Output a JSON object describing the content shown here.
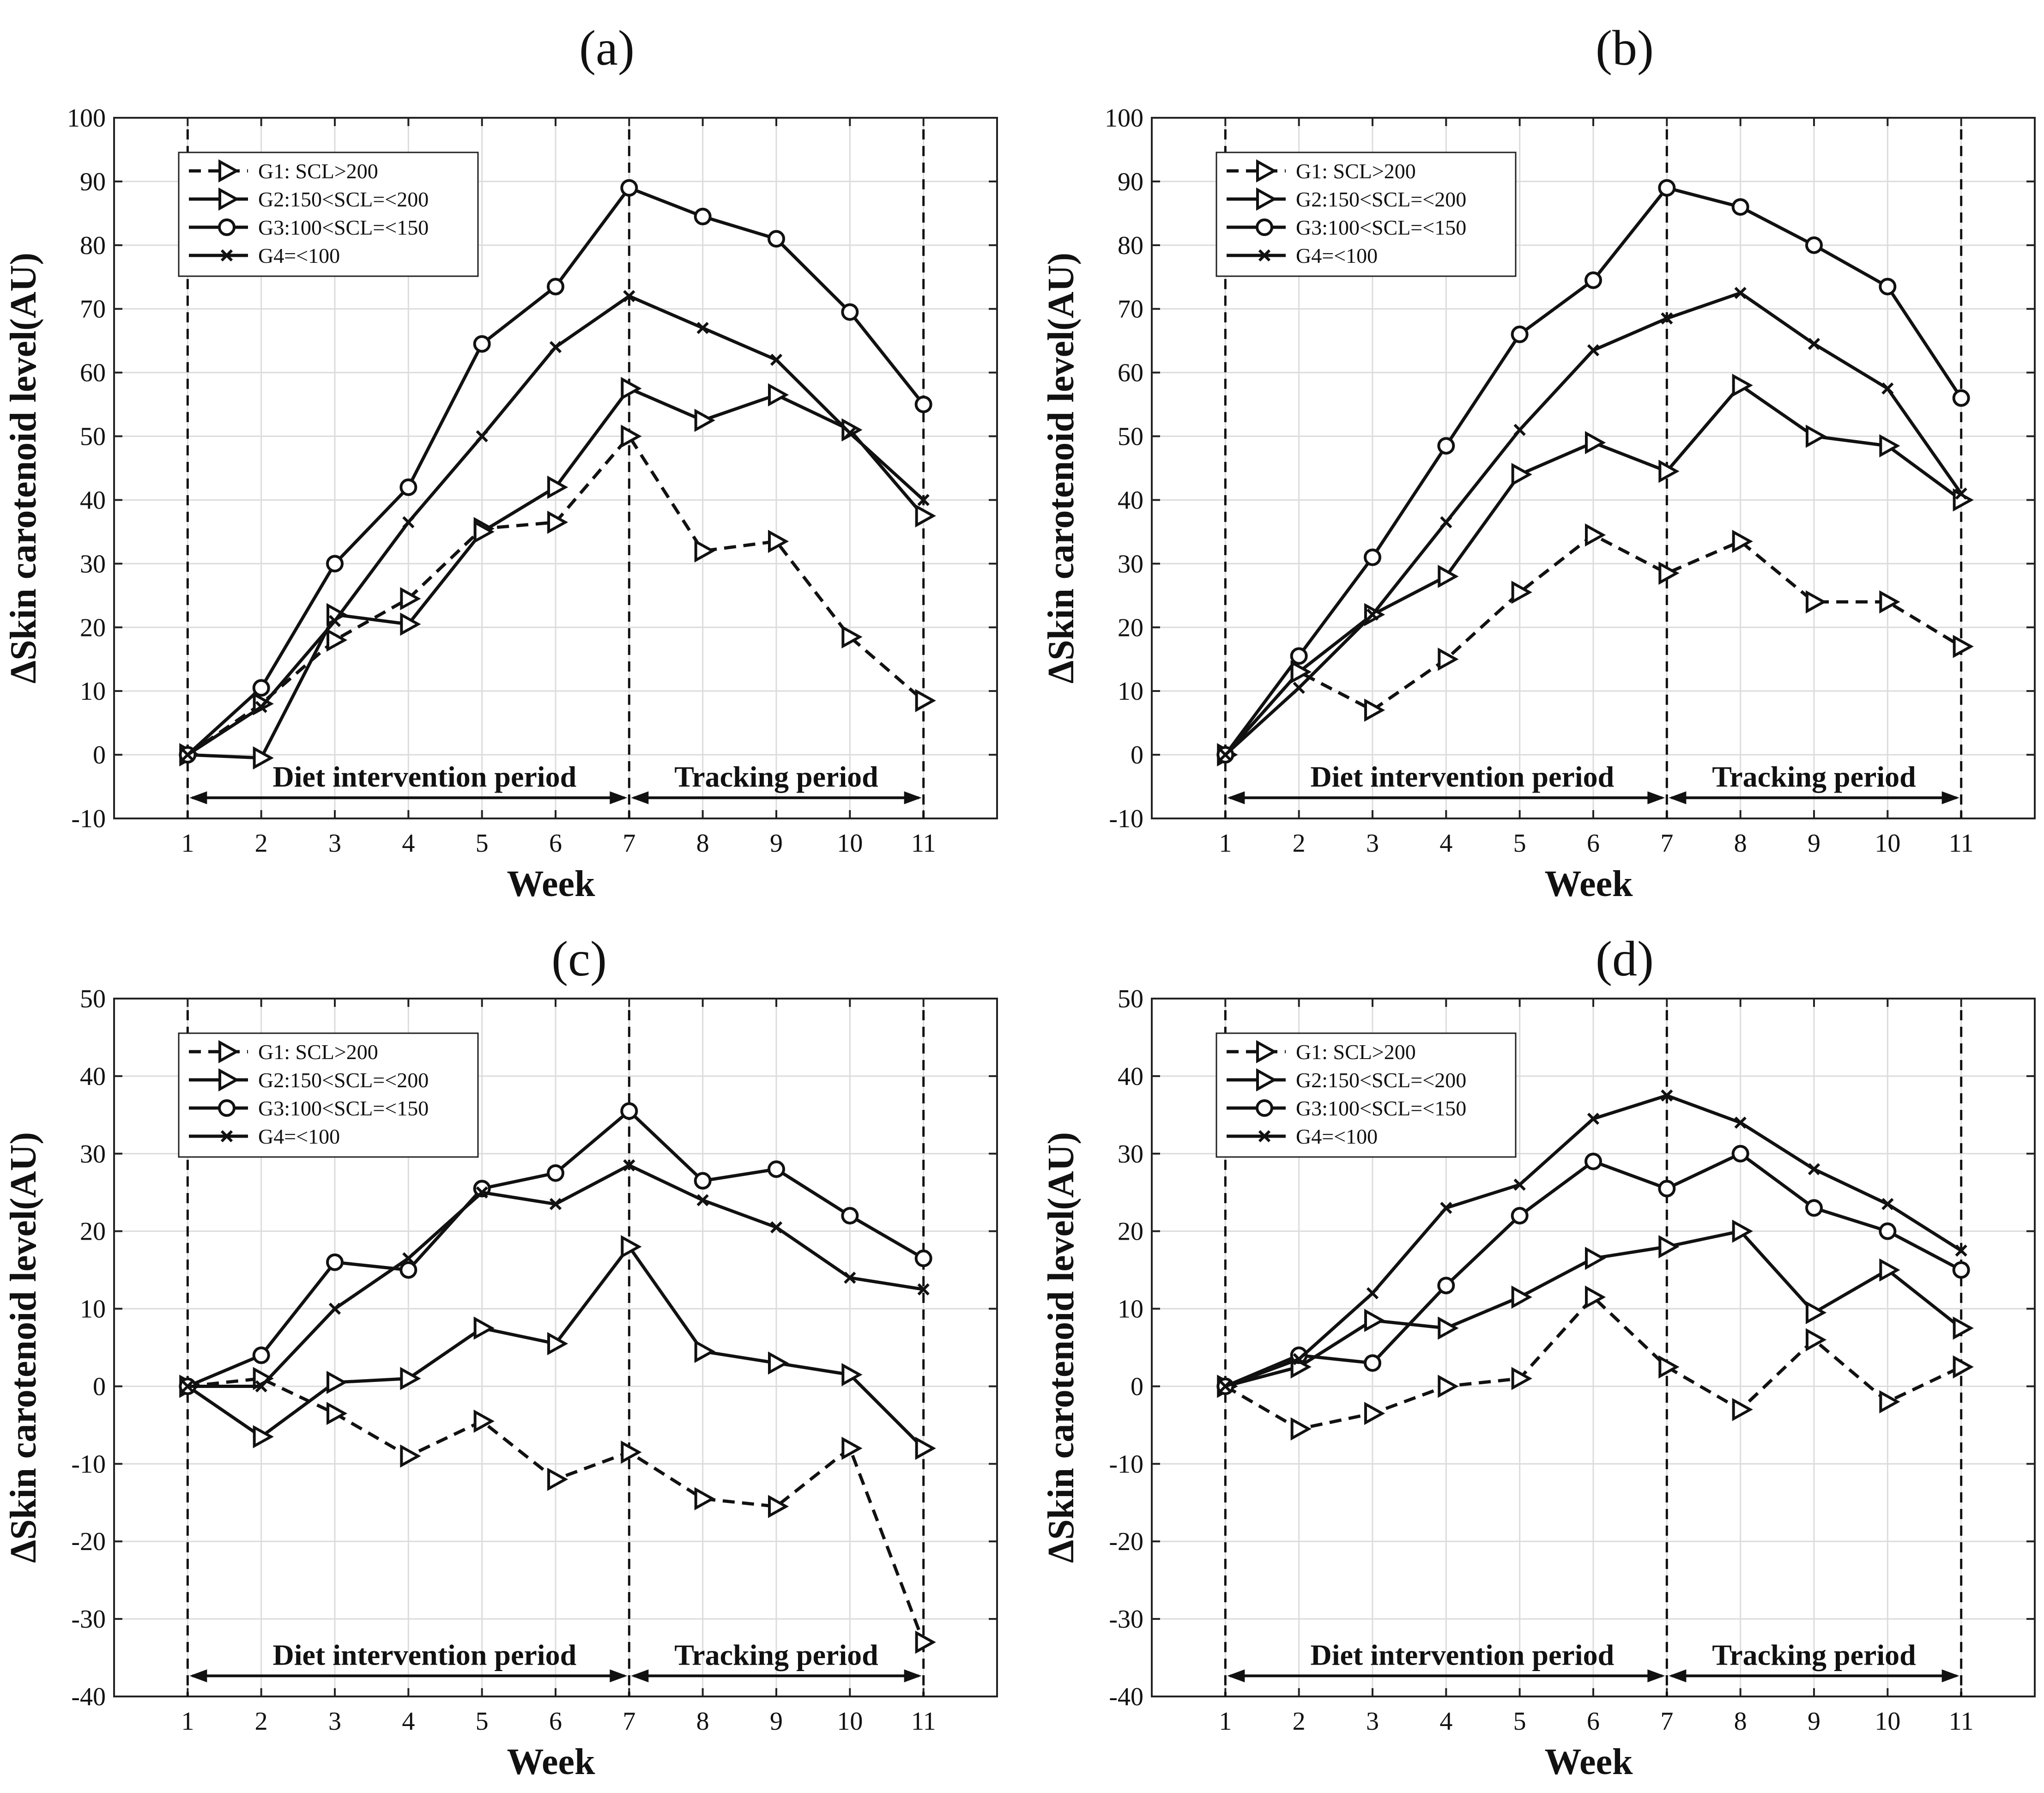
{
  "chart_data": [
    {
      "type": "line",
      "title": "(a)",
      "xlabel": "Week",
      "ylabel": "ΔSkin carotenoid level(AU)",
      "x": [
        1,
        2,
        3,
        4,
        5,
        6,
        7,
        8,
        9,
        10,
        11
      ],
      "xlim": [
        0,
        12
      ],
      "ylim": [
        -10,
        100
      ],
      "ytick_step": 10,
      "grid": true,
      "legend_position": "top-left",
      "period_labels": {
        "intervention": "Diet intervention period",
        "tracking": "Tracking period"
      },
      "period_boundaries": [
        1,
        7,
        11
      ],
      "series": [
        {
          "name": "G1: SCL>200",
          "style": "dashed",
          "marker": "triangle-right",
          "values": [
            0,
            8,
            18,
            24.5,
            35.5,
            36.5,
            50,
            32,
            33.5,
            18.5,
            8.5
          ]
        },
        {
          "name": "G2:150<SCL=<200",
          "style": "solid",
          "marker": "triangle-right",
          "values": [
            0,
            -0.5,
            22,
            20.5,
            35,
            42,
            57.5,
            52.5,
            56.5,
            51,
            37.5
          ]
        },
        {
          "name": "G3:100<SCL=<150",
          "style": "solid",
          "marker": "circle",
          "values": [
            0,
            10.5,
            30,
            42,
            64.5,
            73.5,
            89,
            84.5,
            81,
            69.5,
            55
          ]
        },
        {
          "name": "G4=<100",
          "style": "solid",
          "marker": "x",
          "values": [
            0,
            7.5,
            21,
            36.5,
            50,
            64,
            72,
            67,
            62,
            50.5,
            40
          ]
        }
      ]
    },
    {
      "type": "line",
      "title": "(b)",
      "xlabel": "Week",
      "ylabel": "ΔSkin carotenoid level(AU)",
      "x": [
        1,
        2,
        3,
        4,
        5,
        6,
        7,
        8,
        9,
        10,
        11
      ],
      "xlim": [
        0,
        12
      ],
      "ylim": [
        -10,
        100
      ],
      "ytick_step": 10,
      "grid": true,
      "legend_position": "top-left",
      "period_labels": {
        "intervention": "Diet intervention period",
        "tracking": "Tracking period"
      },
      "period_boundaries": [
        1,
        7,
        11
      ],
      "series": [
        {
          "name": "G1: SCL>200",
          "style": "dashed",
          "marker": "triangle-right",
          "values": [
            0,
            13,
            7,
            15,
            25.5,
            34.5,
            28.5,
            33.5,
            24,
            24,
            17
          ]
        },
        {
          "name": "G2:150<SCL=<200",
          "style": "solid",
          "marker": "triangle-right",
          "values": [
            0,
            13,
            22,
            28,
            44,
            49,
            44.5,
            58,
            50,
            48.5,
            40
          ]
        },
        {
          "name": "G3:100<SCL=<150",
          "style": "solid",
          "marker": "circle",
          "values": [
            0,
            15.5,
            31,
            48.5,
            66,
            74.5,
            89,
            86,
            80,
            73.5,
            56
          ]
        },
        {
          "name": "G4=<100",
          "style": "solid",
          "marker": "x",
          "values": [
            0,
            10.5,
            22,
            36.5,
            51,
            63.5,
            68.5,
            72.5,
            64.5,
            57.5,
            41
          ]
        }
      ]
    },
    {
      "type": "line",
      "title": "(c)",
      "xlabel": "Week",
      "ylabel": "ΔSkin carotenoid level(AU)",
      "x": [
        1,
        2,
        3,
        4,
        5,
        6,
        7,
        8,
        9,
        10,
        11
      ],
      "xlim": [
        0,
        12
      ],
      "ylim": [
        -40,
        50
      ],
      "ytick_step": 10,
      "grid": true,
      "legend_position": "top-left",
      "period_labels": {
        "intervention": "Diet intervention period",
        "tracking": "Tracking period"
      },
      "period_boundaries": [
        1,
        7,
        11
      ],
      "series": [
        {
          "name": "G1: SCL>200",
          "style": "dashed",
          "marker": "triangle-right",
          "values": [
            0,
            1,
            -3.5,
            -9,
            -4.5,
            -12,
            -8.5,
            -14.5,
            -15.5,
            -8,
            -33
          ]
        },
        {
          "name": "G2:150<SCL=<200",
          "style": "solid",
          "marker": "triangle-right",
          "values": [
            0,
            -6.5,
            0.5,
            1,
            7.5,
            5.5,
            18,
            4.5,
            3,
            1.5,
            -8
          ]
        },
        {
          "name": "G3:100<SCL=<150",
          "style": "solid",
          "marker": "circle",
          "values": [
            0,
            4,
            16,
            15,
            25.5,
            27.5,
            35.5,
            26.5,
            28,
            22,
            16.5
          ]
        },
        {
          "name": "G4=<100",
          "style": "solid",
          "marker": "x",
          "values": [
            0,
            0,
            10,
            16.5,
            25,
            23.5,
            28.5,
            24,
            20.5,
            14,
            12.5
          ]
        }
      ]
    },
    {
      "type": "line",
      "title": "(d)",
      "xlabel": "Week",
      "ylabel": "ΔSkin carotenoid level(AU)",
      "x": [
        1,
        2,
        3,
        4,
        5,
        6,
        7,
        8,
        9,
        10,
        11
      ],
      "xlim": [
        0,
        12
      ],
      "ylim": [
        -40,
        50
      ],
      "ytick_step": 10,
      "grid": true,
      "legend_position": "top-left",
      "period_labels": {
        "intervention": "Diet intervention period",
        "tracking": "Tracking period"
      },
      "period_boundaries": [
        1,
        7,
        11
      ],
      "series": [
        {
          "name": "G1: SCL>200",
          "style": "dashed",
          "marker": "triangle-right",
          "values": [
            0,
            -5.5,
            -3.5,
            0,
            1,
            11.5,
            2.5,
            -3,
            6,
            -2,
            2.5
          ]
        },
        {
          "name": "G2:150<SCL=<200",
          "style": "solid",
          "marker": "triangle-right",
          "values": [
            0,
            2.5,
            8.5,
            7.5,
            11.5,
            16.5,
            18,
            20,
            9.5,
            15,
            7.5
          ]
        },
        {
          "name": "G3:100<SCL=<150",
          "style": "solid",
          "marker": "circle",
          "values": [
            0,
            4,
            3,
            13,
            22,
            29,
            25.5,
            30,
            23,
            20,
            15
          ]
        },
        {
          "name": "G4=<100",
          "style": "solid",
          "marker": "x",
          "values": [
            0,
            3.5,
            12,
            23,
            26,
            34.5,
            37.5,
            34,
            28,
            23.5,
            17.5
          ]
        }
      ]
    }
  ]
}
